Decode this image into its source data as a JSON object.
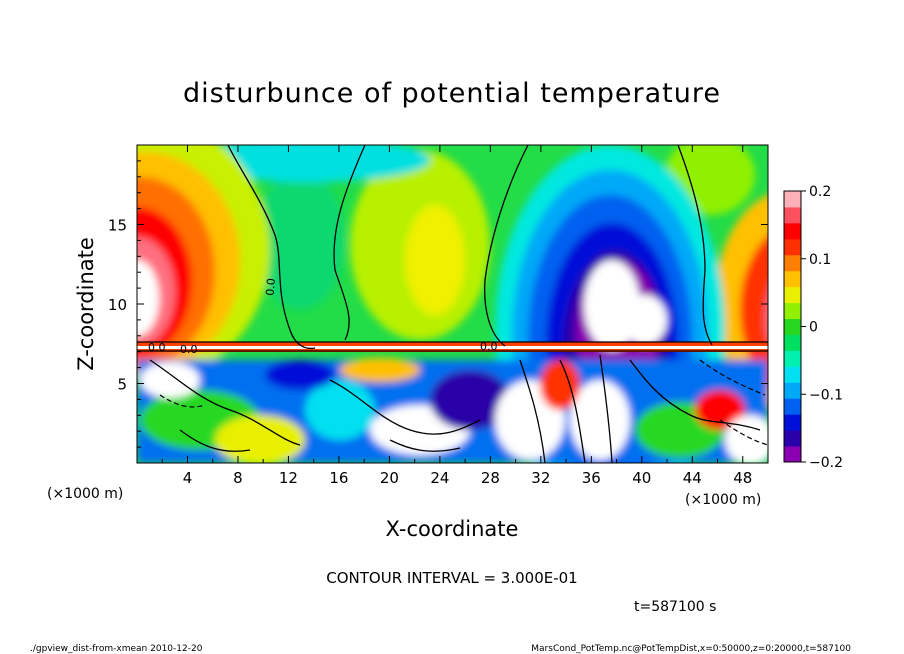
{
  "chart_data": {
    "type": "heatmap",
    "title": "disturbunce of potential temperature",
    "xlabel": "X-coordinate",
    "ylabel": "Z-coordinate",
    "x_unit": "(×1000 m)",
    "x_unit_right": "(×1000 m)",
    "y_unit": "(×1000 m)",
    "xlim": [
      0,
      50
    ],
    "ylim": [
      0,
      20
    ],
    "x_ticks": [
      4,
      8,
      12,
      16,
      20,
      24,
      28,
      32,
      36,
      40,
      44,
      48
    ],
    "y_ticks": [
      5,
      10,
      15
    ],
    "colorbar": {
      "range": [
        -0.2,
        0.2
      ],
      "tick_values": [
        0.2,
        0.1,
        0,
        -0.1,
        -0.2
      ],
      "tick_labels": [
        "0.2",
        "0.1",
        "0",
        "−0.1",
        "−0.2"
      ],
      "colors": [
        "#8b00b0",
        "#2a00a8",
        "#0010d8",
        "#0060f0",
        "#00a8f8",
        "#00e0f0",
        "#00f0b0",
        "#00e060",
        "#28d820",
        "#90f000",
        "#e8f000",
        "#ffc000",
        "#ff8000",
        "#ff3000",
        "#ff0000",
        "#ff5060",
        "#ffb0b8"
      ]
    },
    "contour_interval_text": "CONTOUR INTERVAL = 3.000E-01",
    "contour_labels": [
      "0.0",
      "0.0",
      "0.0",
      "0.0"
    ],
    "time_text": "t=587100 s"
  },
  "footer": {
    "left": "./gpview_dist-from-xmean  2010-12-20",
    "right": "MarsCond_PotTemp.nc@PotTempDist,x=0:50000,z=0:20000,t=587100"
  }
}
